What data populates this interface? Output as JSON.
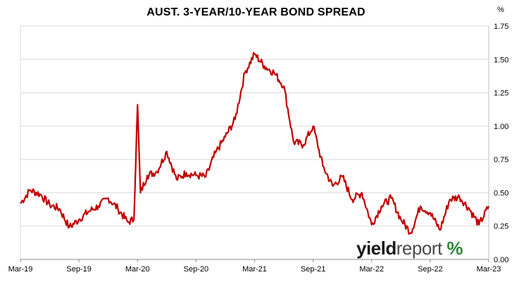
{
  "chart_data": {
    "type": "line",
    "title": "AUST. 3-YEAR/10-YEAR BOND SPREAD",
    "unit_label": "%",
    "xlabel": "",
    "ylabel": "",
    "x_tick_labels": [
      "Mar-19",
      "Sep-19",
      "Mar-20",
      "Sep-20",
      "Mar-21",
      "Sep-21",
      "Mar-22",
      "Sep-22",
      "Mar-23"
    ],
    "y_ticks": [
      "0.00",
      "0.25",
      "0.50",
      "0.75",
      "1.00",
      "1.25",
      "1.50",
      "1.75"
    ],
    "ylim": [
      0,
      1.75
    ],
    "xlim": [
      "2019-03",
      "2023-03"
    ],
    "y_axis_position": "right",
    "grid": "horizontal",
    "series": [
      {
        "color": "#c00000",
        "points": [
          [
            "2019-03",
            0.42
          ],
          [
            "2019-04",
            0.52
          ],
          [
            "2019-05",
            0.49
          ],
          [
            "2019-06",
            0.41
          ],
          [
            "2019-07",
            0.38
          ],
          [
            "2019-08",
            0.24
          ],
          [
            "2019-09",
            0.3
          ],
          [
            "2019-10",
            0.36
          ],
          [
            "2019-11",
            0.4
          ],
          [
            "2019-12",
            0.46
          ],
          [
            "2020-01",
            0.38
          ],
          [
            "2020-02",
            0.28
          ],
          [
            "2020-02-20",
            0.3
          ],
          [
            "2020-03",
            1.16
          ],
          [
            "2020-03-10",
            0.5
          ],
          [
            "2020-04",
            0.63
          ],
          [
            "2020-05",
            0.66
          ],
          [
            "2020-06",
            0.81
          ],
          [
            "2020-07",
            0.6
          ],
          [
            "2020-08",
            0.65
          ],
          [
            "2020-09",
            0.63
          ],
          [
            "2020-10",
            0.62
          ],
          [
            "2020-11",
            0.8
          ],
          [
            "2020-12",
            0.92
          ],
          [
            "2021-01",
            1.05
          ],
          [
            "2021-02",
            1.4
          ],
          [
            "2021-03",
            1.54
          ],
          [
            "2021-04",
            1.45
          ],
          [
            "2021-05",
            1.4
          ],
          [
            "2021-06",
            1.3
          ],
          [
            "2021-07",
            0.88
          ],
          [
            "2021-08",
            0.86
          ],
          [
            "2021-09",
            1.0
          ],
          [
            "2021-10",
            0.7
          ],
          [
            "2021-11",
            0.55
          ],
          [
            "2021-12",
            0.62
          ],
          [
            "2022-01",
            0.45
          ],
          [
            "2022-02",
            0.5
          ],
          [
            "2022-03",
            0.26
          ],
          [
            "2022-04",
            0.4
          ],
          [
            "2022-05",
            0.46
          ],
          [
            "2022-06",
            0.3
          ],
          [
            "2022-07",
            0.2
          ],
          [
            "2022-08",
            0.4
          ],
          [
            "2022-09",
            0.35
          ],
          [
            "2022-10",
            0.22
          ],
          [
            "2022-11",
            0.45
          ],
          [
            "2022-12",
            0.47
          ],
          [
            "2023-01",
            0.38
          ],
          [
            "2023-02",
            0.26
          ],
          [
            "2023-03",
            0.4
          ]
        ]
      }
    ]
  },
  "branding": {
    "logo_yield": "yield",
    "logo_report": "report",
    "logo_pct": "%"
  }
}
